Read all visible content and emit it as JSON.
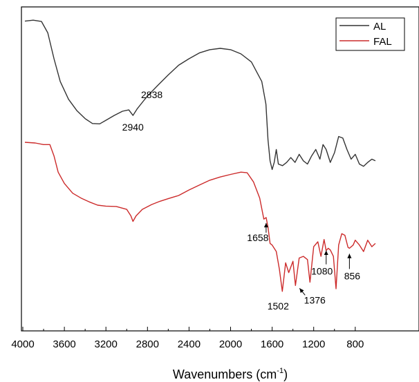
{
  "chart_data": {
    "type": "line",
    "title": "",
    "xlabel": "Wavenumbers (cm",
    "xlabel_superscript": "-1",
    "xlabel_close": ")",
    "ylabel": "",
    "x_reversed": true,
    "xlim": [
      4000,
      600
    ],
    "ylim": [
      0,
      100
    ],
    "y_ticks_labeled": false,
    "grid": false,
    "legend_position": "top-right",
    "x_ticks": [
      4000,
      3600,
      3200,
      2800,
      2400,
      2000,
      1600,
      1200,
      800
    ],
    "x_tick_labels": [
      "4000",
      "3600",
      "3200",
      "2800",
      "2400",
      "2000",
      "1600",
      "1200",
      "800"
    ],
    "series": [
      {
        "name": "AL",
        "color": "#333333",
        "points": [
          [
            3980,
            95.6
          ],
          [
            3900,
            95.9
          ],
          [
            3820,
            95.5
          ],
          [
            3760,
            92
          ],
          [
            3700,
            84
          ],
          [
            3640,
            77
          ],
          [
            3560,
            71.5
          ],
          [
            3480,
            68
          ],
          [
            3400,
            65.5
          ],
          [
            3330,
            64
          ],
          [
            3260,
            63.9
          ],
          [
            3200,
            65
          ],
          [
            3120,
            66.5
          ],
          [
            3040,
            67.8
          ],
          [
            2980,
            68.2
          ],
          [
            2940,
            66.5
          ],
          [
            2900,
            68.5
          ],
          [
            2838,
            71
          ],
          [
            2800,
            72.5
          ],
          [
            2700,
            75.8
          ],
          [
            2600,
            79
          ],
          [
            2500,
            82
          ],
          [
            2400,
            84
          ],
          [
            2300,
            85.8
          ],
          [
            2200,
            86.8
          ],
          [
            2100,
            87.2
          ],
          [
            2000,
            86.8
          ],
          [
            1900,
            85.5
          ],
          [
            1800,
            83
          ],
          [
            1700,
            77
          ],
          [
            1660,
            70
          ],
          [
            1640,
            59
          ],
          [
            1620,
            52.5
          ],
          [
            1600,
            49.8
          ],
          [
            1580,
            52
          ],
          [
            1560,
            56
          ],
          [
            1540,
            51.5
          ],
          [
            1500,
            51
          ],
          [
            1460,
            52
          ],
          [
            1420,
            53.5
          ],
          [
            1380,
            52
          ],
          [
            1340,
            54.5
          ],
          [
            1300,
            52.5
          ],
          [
            1260,
            51.5
          ],
          [
            1220,
            54
          ],
          [
            1180,
            56
          ],
          [
            1140,
            53
          ],
          [
            1110,
            57.5
          ],
          [
            1080,
            56
          ],
          [
            1040,
            52
          ],
          [
            1000,
            55
          ],
          [
            960,
            60
          ],
          [
            920,
            59.5
          ],
          [
            880,
            56
          ],
          [
            840,
            53
          ],
          [
            800,
            54.5
          ],
          [
            760,
            51.5
          ],
          [
            720,
            50.8
          ],
          [
            680,
            52
          ],
          [
            640,
            53
          ],
          [
            606,
            52.5
          ]
        ]
      },
      {
        "name": "FAL",
        "color": "#cc2a2a",
        "points": [
          [
            3980,
            58.2
          ],
          [
            3880,
            58
          ],
          [
            3800,
            57.5
          ],
          [
            3740,
            57.5
          ],
          [
            3700,
            54
          ],
          [
            3660,
            49
          ],
          [
            3600,
            45.5
          ],
          [
            3520,
            42.5
          ],
          [
            3440,
            41
          ],
          [
            3360,
            39.8
          ],
          [
            3280,
            38.8
          ],
          [
            3200,
            38.5
          ],
          [
            3100,
            38.4
          ],
          [
            3000,
            37.5
          ],
          [
            2960,
            35.5
          ],
          [
            2940,
            33.8
          ],
          [
            2910,
            35.5
          ],
          [
            2850,
            37.5
          ],
          [
            2760,
            39
          ],
          [
            2680,
            40
          ],
          [
            2600,
            40.8
          ],
          [
            2500,
            41.8
          ],
          [
            2400,
            43.5
          ],
          [
            2300,
            45
          ],
          [
            2200,
            46.5
          ],
          [
            2100,
            47.5
          ],
          [
            2000,
            48.3
          ],
          [
            1900,
            49
          ],
          [
            1840,
            48.8
          ],
          [
            1780,
            46
          ],
          [
            1720,
            41
          ],
          [
            1680,
            34.5
          ],
          [
            1658,
            35
          ],
          [
            1640,
            32
          ],
          [
            1620,
            27
          ],
          [
            1600,
            26.5
          ],
          [
            1560,
            24.5
          ],
          [
            1530,
            19
          ],
          [
            1502,
            12.2
          ],
          [
            1470,
            21
          ],
          [
            1440,
            18
          ],
          [
            1400,
            21.5
          ],
          [
            1376,
            14
          ],
          [
            1340,
            22.5
          ],
          [
            1300,
            23
          ],
          [
            1260,
            22
          ],
          [
            1236,
            15
          ],
          [
            1200,
            26
          ],
          [
            1160,
            27.5
          ],
          [
            1130,
            23
          ],
          [
            1100,
            28.2
          ],
          [
            1080,
            24.8
          ],
          [
            1060,
            25.5
          ],
          [
            1040,
            25
          ],
          [
            1010,
            23
          ],
          [
            985,
            13
          ],
          [
            960,
            26.5
          ],
          [
            930,
            30
          ],
          [
            900,
            29.5
          ],
          [
            870,
            25.8
          ],
          [
            856,
            25.5
          ],
          [
            820,
            26.5
          ],
          [
            800,
            28
          ],
          [
            760,
            26.5
          ],
          [
            720,
            24.5
          ],
          [
            680,
            28
          ],
          [
            640,
            26
          ],
          [
            606,
            27
          ]
        ]
      }
    ],
    "annotations": [
      {
        "label": "2940",
        "x": 2940,
        "y": 66.5,
        "arrow": false
      },
      {
        "label": "2838",
        "x": 2838,
        "y": 71,
        "arrow": false
      },
      {
        "label": "1658",
        "x": 1658,
        "y": 35,
        "arrow": true
      },
      {
        "label": "1502",
        "x": 1502,
        "y": 12.2,
        "arrow": false
      },
      {
        "label": "1376",
        "x": 1376,
        "y": 14,
        "arrow": true
      },
      {
        "label": "1080",
        "x": 1080,
        "y": 24.8,
        "arrow": true
      },
      {
        "label": "856",
        "x": 856,
        "y": 25.5,
        "arrow": true
      }
    ]
  }
}
